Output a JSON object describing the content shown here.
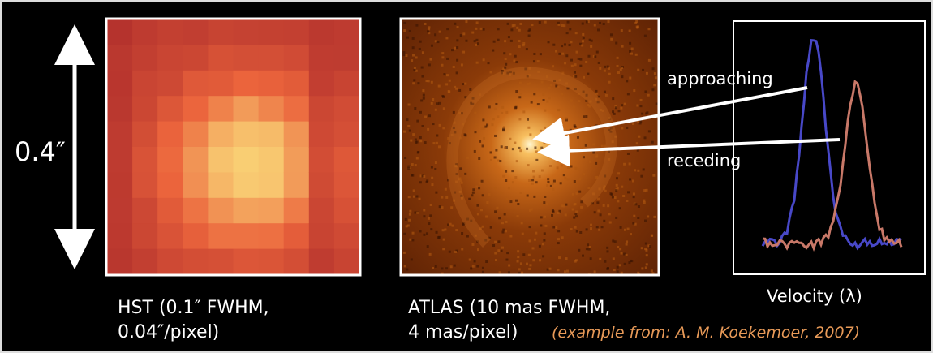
{
  "scale_label": "0.4″",
  "hst": {
    "caption_line1": "HST (0.1″ FWHM,",
    "caption_line2": "0.04″/pixel)"
  },
  "atlas": {
    "caption_line1": "ATLAS (10 mas FWHM,",
    "caption_line2": "4 mas/pixel)"
  },
  "credit": "(example from:  A. M. Koekemoer, 2007)",
  "annotations": {
    "approaching": "approaching",
    "receding": "receding"
  },
  "spectrum": {
    "axis_label": "Velocity (λ)"
  }
}
